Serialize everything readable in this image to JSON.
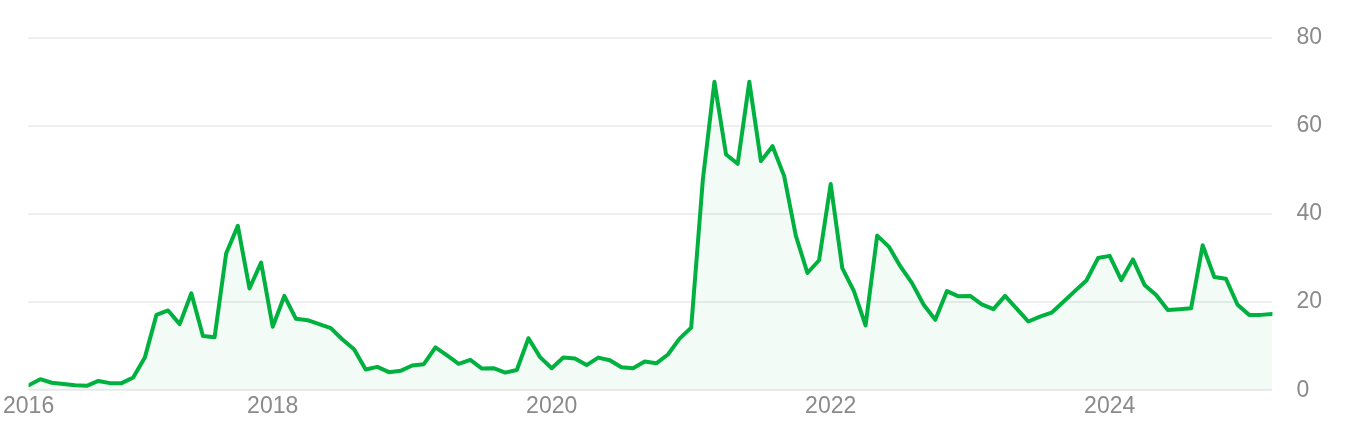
{
  "chart_data": {
    "type": "area",
    "x": [
      "2016-04",
      "2016-05",
      "2016-06",
      "2016-07",
      "2016-08",
      "2016-09",
      "2016-10",
      "2016-11",
      "2016-12",
      "2017-01",
      "2017-02",
      "2017-03",
      "2017-04",
      "2017-05",
      "2017-06",
      "2017-07",
      "2017-08",
      "2017-09",
      "2017-10",
      "2017-11",
      "2017-12",
      "2018-01",
      "2018-02",
      "2018-03",
      "2018-04",
      "2018-05",
      "2018-06",
      "2018-07",
      "2018-08",
      "2018-09",
      "2018-10",
      "2018-11",
      "2018-12",
      "2019-01",
      "2019-02",
      "2019-03",
      "2019-04",
      "2019-05",
      "2019-06",
      "2019-07",
      "2019-08",
      "2019-09",
      "2019-10",
      "2019-11",
      "2019-12",
      "2020-01",
      "2020-02",
      "2020-03",
      "2020-04",
      "2020-05",
      "2020-06",
      "2020-07",
      "2020-08",
      "2020-09",
      "2020-10",
      "2020-11",
      "2020-12",
      "2021-01",
      "2021-02",
      "2021-03",
      "2021-04",
      "2021-05",
      "2021-06",
      "2021-07",
      "2021-08",
      "2021-09",
      "2021-10",
      "2021-11",
      "2021-12",
      "2022-01",
      "2022-02",
      "2022-03",
      "2022-04",
      "2022-05",
      "2022-06",
      "2022-07",
      "2022-08",
      "2022-09",
      "2022-10",
      "2022-11",
      "2022-12",
      "2023-01",
      "2023-02",
      "2023-03",
      "2023-04",
      "2023-05",
      "2023-06",
      "2023-07",
      "2023-08",
      "2023-09",
      "2023-10",
      "2023-11",
      "2023-12",
      "2024-01",
      "2024-02",
      "2024-03",
      "2024-04",
      "2024-05",
      "2024-06",
      "2024-07",
      "2024-08",
      "2024-09",
      "2024-10",
      "2024-11",
      "2024-12",
      "2025-01",
      "2025-02",
      "2025-03"
    ],
    "series": [
      {
        "color": "#00b140",
        "values": [
          1.1,
          2.5,
          1.7,
          1.4,
          1.1,
          1.0,
          2.1,
          1.6,
          1.6,
          2.9,
          7.4,
          17.1,
          18.1,
          15.0,
          22.0,
          12.3,
          12.0,
          31.1,
          37.3,
          23.1,
          29.0,
          14.4,
          21.4,
          16.2,
          15.9,
          15.0,
          14.1,
          11.5,
          9.3,
          4.7,
          5.3,
          4.1,
          4.4,
          5.6,
          5.9,
          9.7,
          7.9,
          6.0,
          6.9,
          4.9,
          5.0,
          4.0,
          4.6,
          11.8,
          7.5,
          5.0,
          7.4,
          7.2,
          5.7,
          7.4,
          6.8,
          5.2,
          5.0,
          6.5,
          6.1,
          8.1,
          11.7,
          14.2,
          47.7,
          70.0,
          53.5,
          51.4,
          70.0,
          52.0,
          55.4,
          48.6,
          35.1,
          26.6,
          29.5,
          46.8,
          27.7,
          22.5,
          14.7,
          35.1,
          32.6,
          28.1,
          24.3,
          19.4,
          16.0,
          22.5,
          21.3,
          21.4,
          19.5,
          18.4,
          21.4,
          18.5,
          15.6,
          16.7,
          17.6,
          20.0,
          22.5,
          24.9,
          30.0,
          30.5,
          25.0,
          29.7,
          23.9,
          21.6,
          18.2,
          18.4,
          18.6,
          32.9,
          25.7,
          25.3,
          19.4,
          17.1,
          17.1,
          17.3
        ]
      }
    ],
    "xlim": [
      "2016-04",
      "2025-03"
    ],
    "xticks": [
      {
        "value": "2016-04",
        "label": "2016"
      },
      {
        "value": "2018-01",
        "label": "2018"
      },
      {
        "value": "2020-01",
        "label": "2020"
      },
      {
        "value": "2022-01",
        "label": "2022"
      },
      {
        "value": "2024-01",
        "label": "2024"
      }
    ],
    "ylim": [
      0,
      80
    ],
    "yticks": [
      0,
      20,
      40,
      60,
      80
    ],
    "grid": "y",
    "legend": false,
    "marker": "none",
    "line_style": "solid"
  }
}
